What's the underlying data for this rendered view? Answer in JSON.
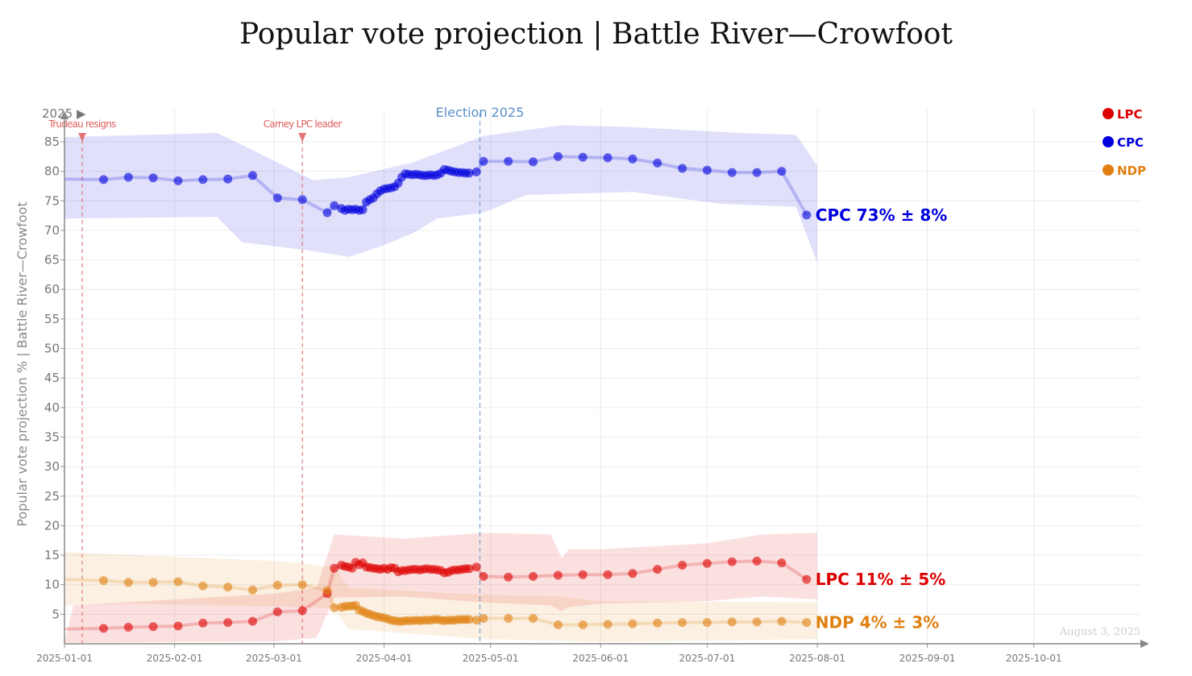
{
  "chart_data": {
    "type": "line",
    "title": "Popular vote projection | Battle River—Crowfoot",
    "ylabel": "Popular vote projection % | Battle River—Crowfoot",
    "xlabel": "",
    "ylim": [
      0,
      85
    ],
    "yticks": [
      5,
      10,
      15,
      20,
      25,
      30,
      35,
      40,
      45,
      50,
      55,
      60,
      65,
      70,
      75,
      80,
      85
    ],
    "xrange": [
      "2025-01-01",
      "2025-10-15"
    ],
    "xticks": [
      "2025-01-01",
      "2025-02-01",
      "2025-03-01",
      "2025-04-01",
      "2025-05-01",
      "2025-06-01",
      "2025-07-01",
      "2025-08-01",
      "2025-09-01",
      "2025-10-01"
    ],
    "year_marker": "2025 ▶",
    "grid": true,
    "events": [
      {
        "date": "2025-01-06",
        "label": "Trudeau resigns",
        "color": "#e06060"
      },
      {
        "date": "2025-03-09",
        "label": "Carney LPC leader",
        "color": "#e06060"
      },
      {
        "date": "2025-04-28",
        "label": "Election 2025",
        "color": "#5a8fc8"
      }
    ],
    "series": [
      {
        "name": "LPC",
        "color": "#dd0000",
        "end_label": "LPC 11% ± 5%",
        "points": [
          [
            "2025-01-01",
            2.5
          ],
          [
            "2025-01-12",
            2.6
          ],
          [
            "2025-01-19",
            2.8
          ],
          [
            "2025-01-26",
            2.9
          ],
          [
            "2025-02-02",
            3.0
          ],
          [
            "2025-02-09",
            3.5
          ],
          [
            "2025-02-16",
            3.6
          ],
          [
            "2025-02-23",
            3.8
          ],
          [
            "2025-03-02",
            5.4
          ],
          [
            "2025-03-09",
            5.6
          ],
          [
            "2025-03-16",
            8.5
          ],
          [
            "2025-03-18",
            12.8
          ],
          [
            "2025-03-20",
            13.3
          ],
          [
            "2025-03-21",
            13.1
          ],
          [
            "2025-03-22",
            13.0
          ],
          [
            "2025-03-23",
            12.8
          ],
          [
            "2025-03-24",
            13.8
          ],
          [
            "2025-03-25",
            13.4
          ],
          [
            "2025-03-26",
            13.7
          ],
          [
            "2025-03-27",
            13.0
          ],
          [
            "2025-03-28",
            12.9
          ],
          [
            "2025-03-29",
            12.8
          ],
          [
            "2025-03-30",
            12.7
          ],
          [
            "2025-03-31",
            12.6
          ],
          [
            "2025-04-01",
            12.8
          ],
          [
            "2025-04-02",
            12.6
          ],
          [
            "2025-04-03",
            12.9
          ],
          [
            "2025-04-04",
            12.8
          ],
          [
            "2025-04-05",
            12.2
          ],
          [
            "2025-04-06",
            12.4
          ],
          [
            "2025-04-07",
            12.4
          ],
          [
            "2025-04-08",
            12.5
          ],
          [
            "2025-04-09",
            12.6
          ],
          [
            "2025-04-10",
            12.6
          ],
          [
            "2025-04-11",
            12.5
          ],
          [
            "2025-04-12",
            12.6
          ],
          [
            "2025-04-13",
            12.7
          ],
          [
            "2025-04-14",
            12.6
          ],
          [
            "2025-04-15",
            12.6
          ],
          [
            "2025-04-16",
            12.5
          ],
          [
            "2025-04-17",
            12.4
          ],
          [
            "2025-04-18",
            12.0
          ],
          [
            "2025-04-19",
            12.1
          ],
          [
            "2025-04-20",
            12.4
          ],
          [
            "2025-04-21",
            12.5
          ],
          [
            "2025-04-22",
            12.5
          ],
          [
            "2025-04-23",
            12.6
          ],
          [
            "2025-04-24",
            12.7
          ],
          [
            "2025-04-25",
            12.7
          ],
          [
            "2025-04-27",
            13.0
          ],
          [
            "2025-04-29",
            11.4
          ],
          [
            "2025-05-06",
            11.3
          ],
          [
            "2025-05-13",
            11.4
          ],
          [
            "2025-05-20",
            11.6
          ],
          [
            "2025-05-27",
            11.7
          ],
          [
            "2025-06-03",
            11.7
          ],
          [
            "2025-06-10",
            11.9
          ],
          [
            "2025-06-17",
            12.6
          ],
          [
            "2025-06-24",
            13.3
          ],
          [
            "2025-07-01",
            13.6
          ],
          [
            "2025-07-08",
            13.9
          ],
          [
            "2025-07-15",
            14.0
          ],
          [
            "2025-07-22",
            13.7
          ],
          [
            "2025-07-29",
            10.9
          ]
        ],
        "band": [
          [
            null,
            null
          ],
          [
            null,
            null
          ]
        ],
        "band_upper": [
          [
            2.5,
            6.5
          ],
          [
            59,
            8.5
          ],
          [
            71,
            9.5
          ],
          [
            76,
            18.5
          ],
          [
            96,
            17.8
          ],
          [
            118,
            18.8
          ],
          [
            137,
            18.5
          ],
          [
            140,
            14.5
          ],
          [
            142,
            16.0
          ],
          [
            151,
            16.0
          ],
          [
            181,
            17.0
          ],
          [
            196,
            18.5
          ],
          [
            212,
            18.8
          ],
          [
            212,
            15.6
          ]
        ],
        "band_lower": [
          [
            0,
            0.2
          ],
          [
            59,
            0.4
          ],
          [
            71,
            1.0
          ],
          [
            76,
            7.8
          ],
          [
            96,
            8.0
          ],
          [
            118,
            7.0
          ],
          [
            137,
            6.5
          ],
          [
            140,
            5.5
          ],
          [
            142,
            6.2
          ],
          [
            151,
            6.8
          ],
          [
            181,
            7.2
          ],
          [
            196,
            8.0
          ],
          [
            212,
            7.5
          ],
          [
            212,
            6.2
          ]
        ]
      },
      {
        "name": "CPC",
        "color": "#0000dd",
        "end_label": "CPC 73% ± 8%",
        "points": [
          [
            "2025-01-01",
            78.7
          ],
          [
            "2025-01-12",
            78.6
          ],
          [
            "2025-01-19",
            79.0
          ],
          [
            "2025-01-26",
            78.9
          ],
          [
            "2025-02-02",
            78.4
          ],
          [
            "2025-02-09",
            78.6
          ],
          [
            "2025-02-16",
            78.7
          ],
          [
            "2025-02-23",
            79.3
          ],
          [
            "2025-03-02",
            75.5
          ],
          [
            "2025-03-09",
            75.2
          ],
          [
            "2025-03-16",
            73.0
          ],
          [
            "2025-03-18",
            74.2
          ],
          [
            "2025-03-20",
            73.7
          ],
          [
            "2025-03-21",
            73.4
          ],
          [
            "2025-03-22",
            73.6
          ],
          [
            "2025-03-23",
            73.5
          ],
          [
            "2025-03-24",
            73.6
          ],
          [
            "2025-03-25",
            73.4
          ],
          [
            "2025-03-26",
            73.5
          ],
          [
            "2025-03-27",
            74.8
          ],
          [
            "2025-03-28",
            75.2
          ],
          [
            "2025-03-29",
            75.5
          ],
          [
            "2025-03-30",
            76.2
          ],
          [
            "2025-03-31",
            76.7
          ],
          [
            "2025-04-01",
            77.0
          ],
          [
            "2025-04-02",
            77.1
          ],
          [
            "2025-04-03",
            77.2
          ],
          [
            "2025-04-04",
            77.4
          ],
          [
            "2025-04-05",
            78.0
          ],
          [
            "2025-04-06",
            79.0
          ],
          [
            "2025-04-07",
            79.6
          ],
          [
            "2025-04-08",
            79.5
          ],
          [
            "2025-04-09",
            79.4
          ],
          [
            "2025-04-10",
            79.5
          ],
          [
            "2025-04-11",
            79.4
          ],
          [
            "2025-04-12",
            79.3
          ],
          [
            "2025-04-13",
            79.3
          ],
          [
            "2025-04-14",
            79.4
          ],
          [
            "2025-04-15",
            79.3
          ],
          [
            "2025-04-16",
            79.4
          ],
          [
            "2025-04-17",
            79.7
          ],
          [
            "2025-04-18",
            80.3
          ],
          [
            "2025-04-19",
            80.2
          ],
          [
            "2025-04-20",
            80.0
          ],
          [
            "2025-04-21",
            79.9
          ],
          [
            "2025-04-22",
            79.8
          ],
          [
            "2025-04-23",
            79.8
          ],
          [
            "2025-04-24",
            79.7
          ],
          [
            "2025-04-25",
            79.7
          ],
          [
            "2025-04-27",
            79.9
          ],
          [
            "2025-04-29",
            81.7
          ],
          [
            "2025-05-06",
            81.7
          ],
          [
            "2025-05-13",
            81.6
          ],
          [
            "2025-05-20",
            82.5
          ],
          [
            "2025-05-27",
            82.4
          ],
          [
            "2025-06-03",
            82.3
          ],
          [
            "2025-06-10",
            82.1
          ],
          [
            "2025-06-17",
            81.4
          ],
          [
            "2025-06-24",
            80.5
          ],
          [
            "2025-07-01",
            80.2
          ],
          [
            "2025-07-08",
            79.8
          ],
          [
            "2025-07-15",
            79.8
          ],
          [
            "2025-07-22",
            80.0
          ],
          [
            "2025-07-29",
            72.6
          ]
        ],
        "band_upper": [
          [
            0,
            85.8
          ],
          [
            43,
            86.5
          ],
          [
            50,
            84.5
          ],
          [
            70,
            78.5
          ],
          [
            80,
            79.0
          ],
          [
            98,
            81.5
          ],
          [
            118,
            86.0
          ],
          [
            140,
            87.8
          ],
          [
            160,
            87.5
          ],
          [
            190,
            86.5
          ],
          [
            206,
            86.2
          ],
          [
            212,
            81.0
          ]
        ],
        "band_lower": [
          [
            0,
            72.0
          ],
          [
            43,
            72.3
          ],
          [
            50,
            68.0
          ],
          [
            70,
            66.5
          ],
          [
            80,
            65.5
          ],
          [
            90,
            67.5
          ],
          [
            98,
            69.5
          ],
          [
            105,
            72.0
          ],
          [
            118,
            73.0
          ],
          [
            130,
            76.0
          ],
          [
            160,
            76.5
          ],
          [
            185,
            74.5
          ],
          [
            206,
            74.0
          ],
          [
            212,
            64.5
          ]
        ]
      },
      {
        "name": "NDP",
        "color": "#e08010",
        "end_label": "NDP 4% ± 3%",
        "points": [
          [
            "2025-01-01",
            10.9
          ],
          [
            "2025-01-12",
            10.7
          ],
          [
            "2025-01-19",
            10.4
          ],
          [
            "2025-01-26",
            10.4
          ],
          [
            "2025-02-02",
            10.5
          ],
          [
            "2025-02-09",
            9.8
          ],
          [
            "2025-02-16",
            9.6
          ],
          [
            "2025-02-23",
            9.1
          ],
          [
            "2025-03-02",
            9.9
          ],
          [
            "2025-03-09",
            10.0
          ],
          [
            "2025-03-16",
            9.0
          ],
          [
            "2025-03-18",
            6.1
          ],
          [
            "2025-03-20",
            6.2
          ],
          [
            "2025-03-21",
            6.3
          ],
          [
            "2025-03-22",
            6.4
          ],
          [
            "2025-03-23",
            6.4
          ],
          [
            "2025-03-24",
            6.5
          ],
          [
            "2025-03-25",
            5.7
          ],
          [
            "2025-03-26",
            5.5
          ],
          [
            "2025-03-27",
            5.2
          ],
          [
            "2025-03-28",
            5.0
          ],
          [
            "2025-03-29",
            4.8
          ],
          [
            "2025-03-30",
            4.6
          ],
          [
            "2025-03-31",
            4.5
          ],
          [
            "2025-04-01",
            4.4
          ],
          [
            "2025-04-02",
            4.2
          ],
          [
            "2025-04-03",
            4.0
          ],
          [
            "2025-04-04",
            3.9
          ],
          [
            "2025-04-05",
            3.8
          ],
          [
            "2025-04-06",
            3.8
          ],
          [
            "2025-04-07",
            3.9
          ],
          [
            "2025-04-08",
            3.9
          ],
          [
            "2025-04-09",
            3.9
          ],
          [
            "2025-04-10",
            4.0
          ],
          [
            "2025-04-11",
            3.9
          ],
          [
            "2025-04-12",
            4.0
          ],
          [
            "2025-04-13",
            4.0
          ],
          [
            "2025-04-14",
            4.0
          ],
          [
            "2025-04-15",
            4.1
          ],
          [
            "2025-04-16",
            4.1
          ],
          [
            "2025-04-17",
            4.0
          ],
          [
            "2025-04-18",
            3.9
          ],
          [
            "2025-04-19",
            4.0
          ],
          [
            "2025-04-20",
            4.0
          ],
          [
            "2025-04-21",
            4.0
          ],
          [
            "2025-04-22",
            4.1
          ],
          [
            "2025-04-23",
            4.1
          ],
          [
            "2025-04-24",
            4.1
          ],
          [
            "2025-04-25",
            4.1
          ],
          [
            "2025-04-27",
            4.0
          ],
          [
            "2025-04-29",
            4.3
          ],
          [
            "2025-05-06",
            4.3
          ],
          [
            "2025-05-13",
            4.3
          ],
          [
            "2025-05-20",
            3.2
          ],
          [
            "2025-05-27",
            3.2
          ],
          [
            "2025-06-03",
            3.3
          ],
          [
            "2025-06-10",
            3.4
          ],
          [
            "2025-06-17",
            3.5
          ],
          [
            "2025-06-24",
            3.6
          ],
          [
            "2025-07-01",
            3.6
          ],
          [
            "2025-07-08",
            3.7
          ],
          [
            "2025-07-15",
            3.7
          ],
          [
            "2025-07-22",
            3.8
          ],
          [
            "2025-07-29",
            3.6
          ]
        ],
        "band_upper": [
          [
            0,
            15.5
          ],
          [
            20,
            15.0
          ],
          [
            60,
            14.0
          ],
          [
            76,
            13.0
          ],
          [
            80,
            9.5
          ],
          [
            118,
            8.3
          ],
          [
            140,
            8.0
          ],
          [
            150,
            7.2
          ],
          [
            212,
            7.0
          ]
        ],
        "band_lower": [
          [
            0,
            6.5
          ],
          [
            20,
            6.8
          ],
          [
            60,
            6.3
          ],
          [
            76,
            6.0
          ],
          [
            80,
            2.5
          ],
          [
            118,
            0.8
          ],
          [
            140,
            0.5
          ],
          [
            150,
            0.3
          ],
          [
            212,
            0.8
          ]
        ]
      }
    ],
    "legend": [
      "LPC",
      "CPC",
      "NDP"
    ],
    "legend_position": "top-right",
    "date_stamp": "August 3, 2025"
  }
}
